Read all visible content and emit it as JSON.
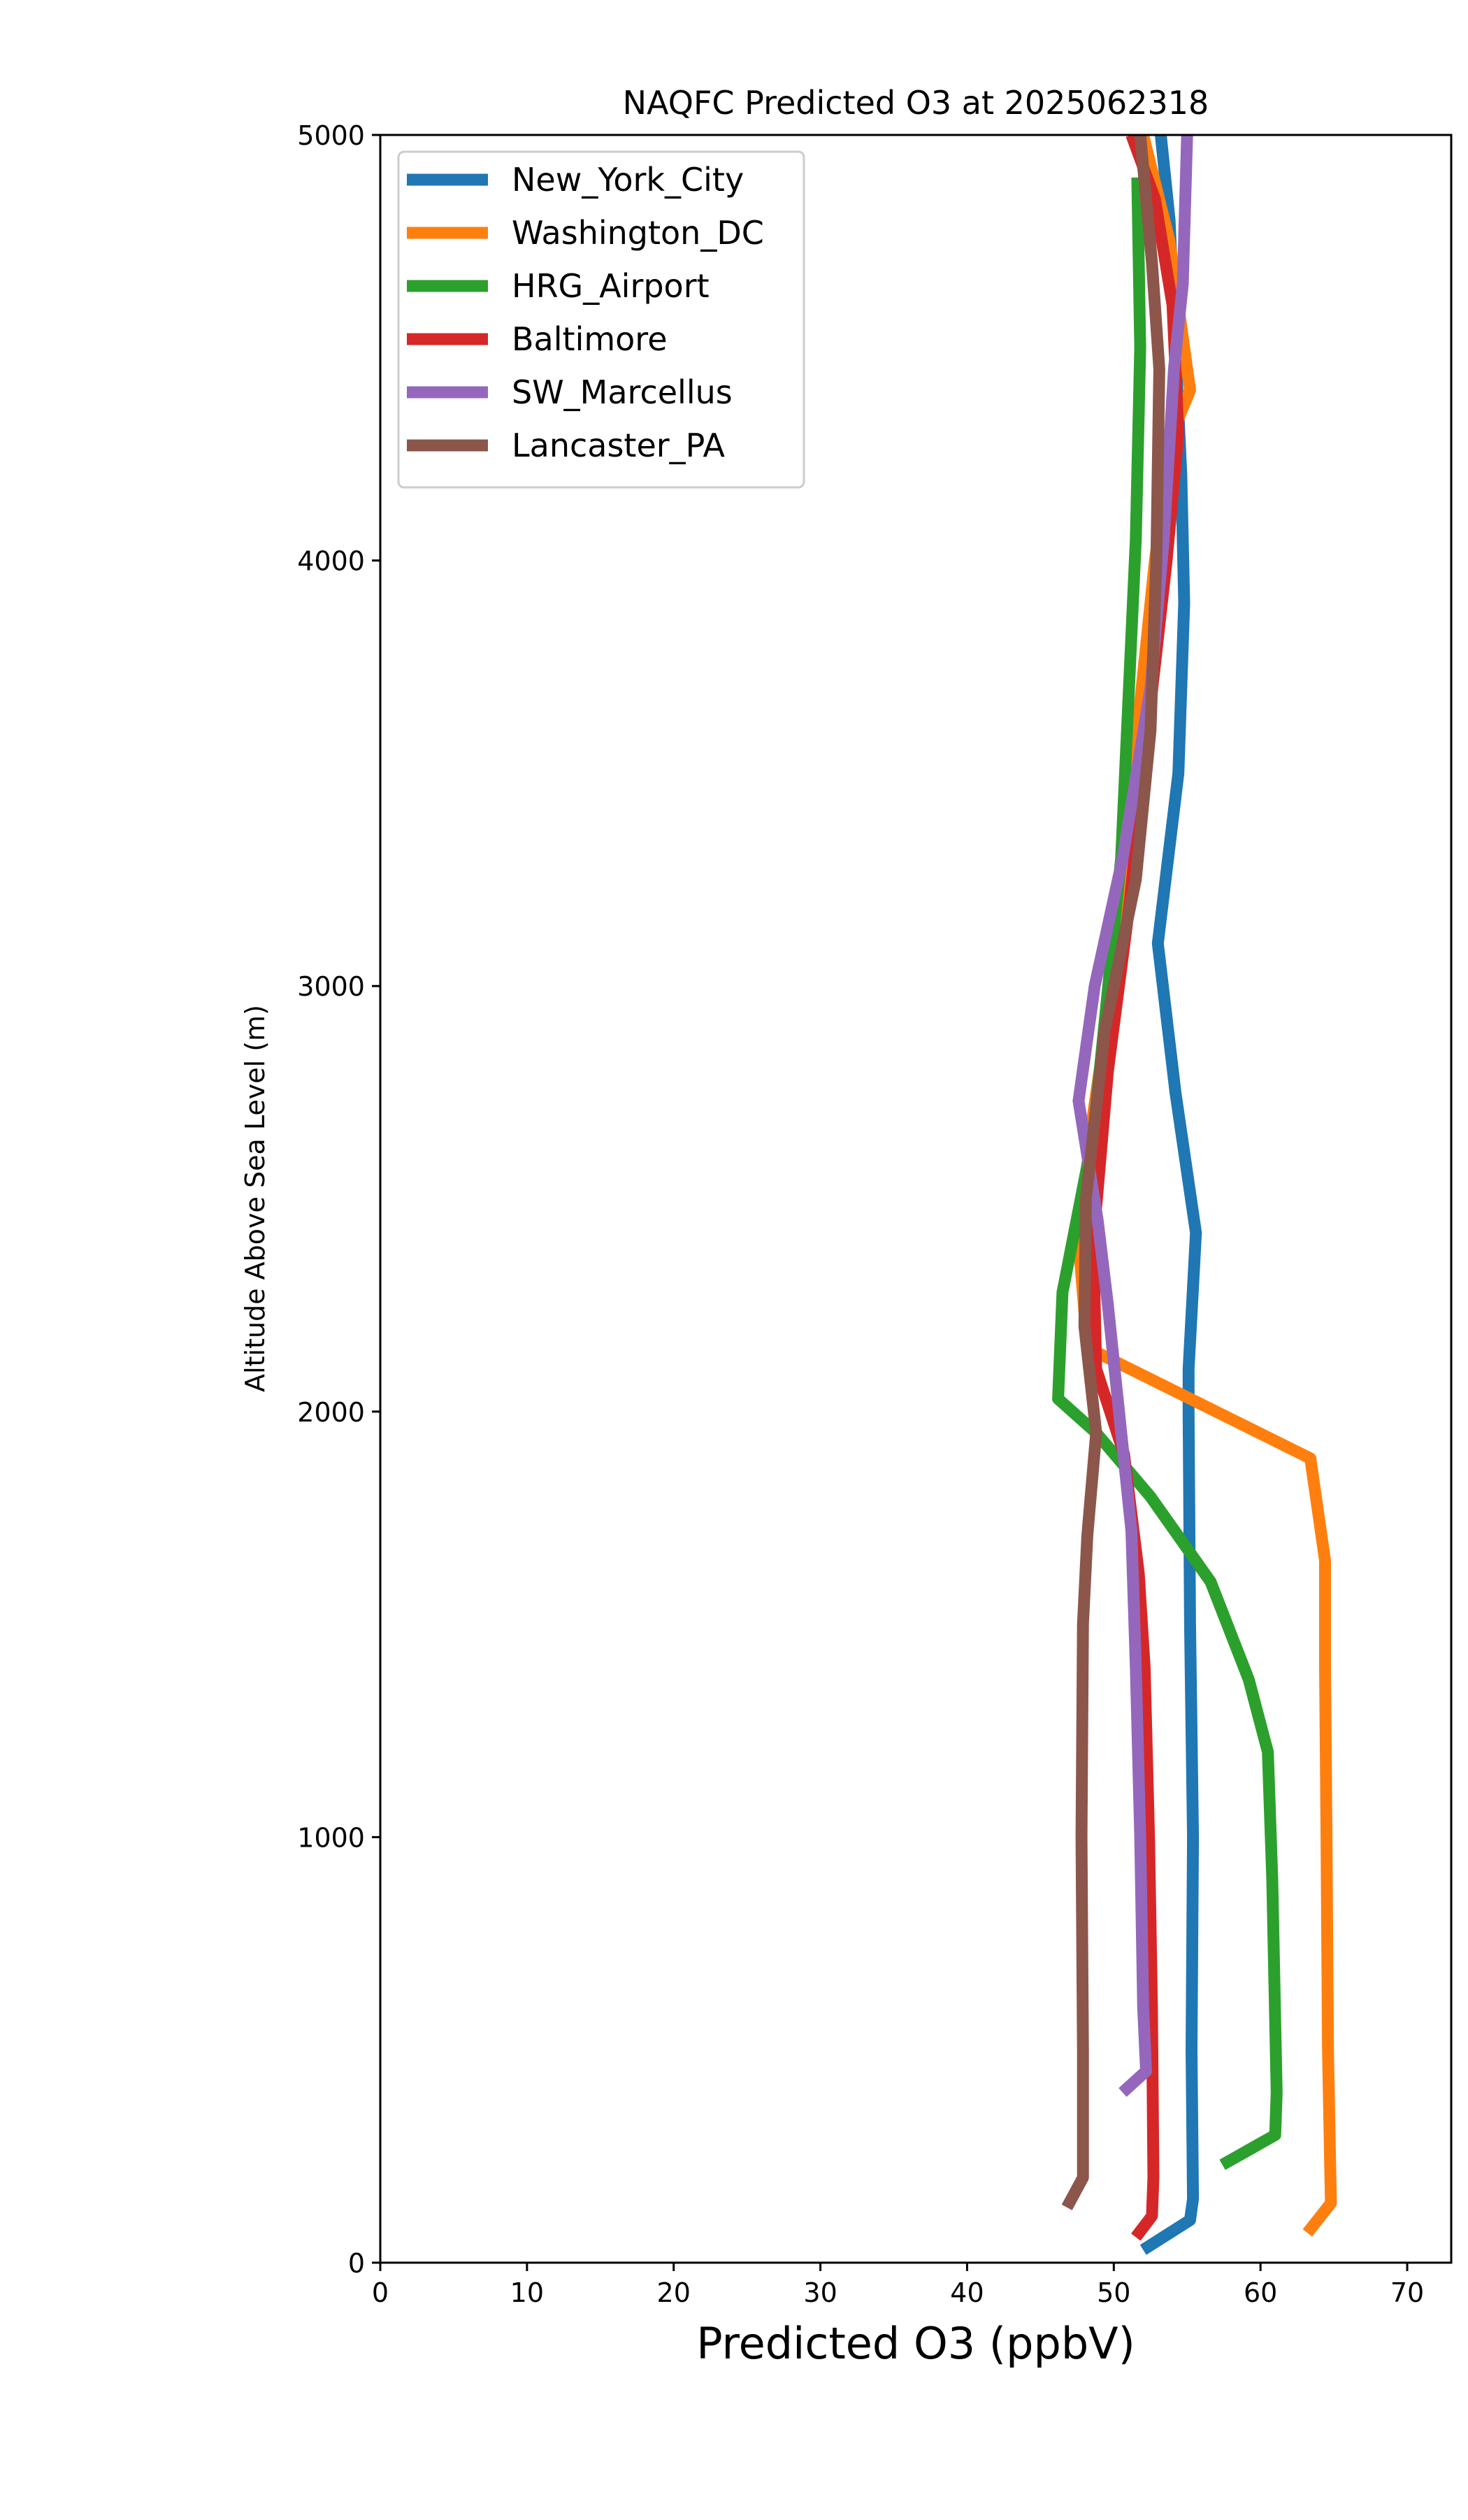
{
  "chart_data": {
    "type": "line",
    "title": "NAQFC Predicted O3 at 2025062318",
    "xlabel": "Predicted O3 (ppbV)",
    "ylabel": "Altitude Above Sea Level (m)",
    "xlim": [
      0,
      73
    ],
    "ylim": [
      0,
      5000
    ],
    "xticks": [
      0,
      10,
      20,
      30,
      40,
      50,
      60,
      70
    ],
    "yticks": [
      0,
      1000,
      2000,
      3000,
      4000,
      5000
    ],
    "grid": false,
    "legend_position": "top-left",
    "series": [
      {
        "name": "New_York_City",
        "color": "#1f77b4",
        "points": [
          [
            52,
            30
          ],
          [
            55.2,
            100
          ],
          [
            55.4,
            150
          ],
          [
            55.3,
            500
          ],
          [
            55.4,
            1000
          ],
          [
            55.2,
            1500
          ],
          [
            55.1,
            2000
          ],
          [
            55.1,
            2100
          ],
          [
            55.6,
            2420
          ],
          [
            54.2,
            2750
          ],
          [
            53,
            3100
          ],
          [
            54.4,
            3500
          ],
          [
            54.8,
            3900
          ],
          [
            54.6,
            4200
          ],
          [
            54.2,
            4500
          ],
          [
            53.8,
            4800
          ],
          [
            53.2,
            5000
          ]
        ]
      },
      {
        "name": "Washington_DC",
        "color": "#ff7f0e",
        "points": [
          [
            63.2,
            70
          ],
          [
            64.8,
            140
          ],
          [
            64.6,
            500
          ],
          [
            64.5,
            1000
          ],
          [
            64.4,
            1400
          ],
          [
            64.4,
            1650
          ],
          [
            63.4,
            1890
          ],
          [
            48.2,
            2150
          ],
          [
            47.6,
            2400
          ],
          [
            48.6,
            2700
          ],
          [
            50.3,
            3100
          ],
          [
            51.6,
            3600
          ],
          [
            52.8,
            4000
          ],
          [
            54,
            4300
          ],
          [
            55.2,
            4400
          ],
          [
            53.8,
            4750
          ],
          [
            52,
            5000
          ]
        ]
      },
      {
        "name": "HRG_Airport",
        "color": "#2ca02c",
        "points": [
          [
            57.4,
            230
          ],
          [
            61,
            300
          ],
          [
            61.1,
            400
          ],
          [
            60.8,
            900
          ],
          [
            60.5,
            1200
          ],
          [
            59.2,
            1370
          ],
          [
            56.6,
            1600
          ],
          [
            52.5,
            1800
          ],
          [
            48.8,
            1950
          ],
          [
            46.2,
            2030
          ],
          [
            46.5,
            2280
          ],
          [
            48.6,
            2650
          ],
          [
            50.5,
            3300
          ],
          [
            51.5,
            4050
          ],
          [
            51.8,
            4500
          ],
          [
            51.6,
            4900
          ]
        ]
      },
      {
        "name": "Baltimore",
        "color": "#d62728",
        "points": [
          [
            51.5,
            60
          ],
          [
            52.6,
            110
          ],
          [
            52.7,
            200
          ],
          [
            52.6,
            600
          ],
          [
            52.4,
            1000
          ],
          [
            52.1,
            1400
          ],
          [
            51.7,
            1620
          ],
          [
            50.7,
            1900
          ],
          [
            48.8,
            2100
          ],
          [
            48.6,
            2400
          ],
          [
            49.6,
            2800
          ],
          [
            51.1,
            3200
          ],
          [
            52.3,
            3600
          ],
          [
            53.6,
            4000
          ],
          [
            54.4,
            4300
          ],
          [
            54,
            4600
          ],
          [
            52.8,
            4850
          ],
          [
            51.2,
            5000
          ]
        ]
      },
      {
        "name": "SW_Marcellus",
        "color": "#9467bd",
        "points": [
          [
            50.6,
            400
          ],
          [
            52.2,
            450
          ],
          [
            52,
            600
          ],
          [
            51.8,
            1000
          ],
          [
            51.5,
            1400
          ],
          [
            51.2,
            1720
          ],
          [
            49.6,
            2250
          ],
          [
            48.9,
            2450
          ],
          [
            47.6,
            2730
          ],
          [
            48.7,
            3000
          ],
          [
            50.6,
            3300
          ],
          [
            52.5,
            3700
          ],
          [
            53.4,
            4050
          ],
          [
            54.1,
            4450
          ],
          [
            54.7,
            4650
          ],
          [
            55,
            5000
          ]
        ]
      },
      {
        "name": "Lancaster_PA",
        "color": "#8c564b",
        "points": [
          [
            46.8,
            130
          ],
          [
            47.9,
            200
          ],
          [
            47.9,
            500
          ],
          [
            47.8,
            1000
          ],
          [
            47.9,
            1500
          ],
          [
            48.2,
            1710
          ],
          [
            48.8,
            1950
          ],
          [
            48,
            2200
          ],
          [
            48.1,
            2500
          ],
          [
            49.4,
            2900
          ],
          [
            51.5,
            3250
          ],
          [
            52.5,
            3600
          ],
          [
            52.9,
            4000
          ],
          [
            53.1,
            4450
          ],
          [
            52.6,
            4700
          ],
          [
            51.8,
            5000
          ]
        ]
      }
    ]
  }
}
